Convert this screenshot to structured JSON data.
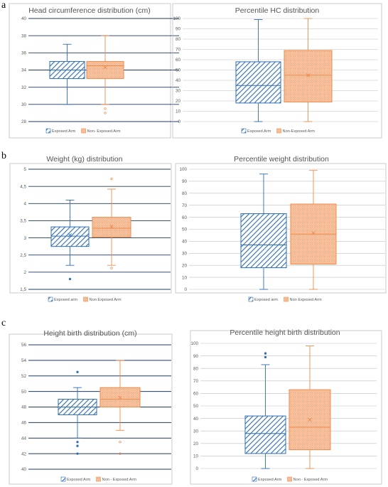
{
  "panels": [
    {
      "letter": "a"
    },
    {
      "letter": "b"
    },
    {
      "letter": "c"
    }
  ],
  "colors": {
    "exposed": "#2e6db4",
    "nonexposed": "#ef8a4a",
    "grid": "#1f3864",
    "frame": "#bfbfbf"
  },
  "chart_data": [
    {
      "type": "box",
      "title": "Head circumference distribution (cm)",
      "ylim": [
        28,
        40
      ],
      "yticks": [
        "28",
        "30",
        "32",
        "34",
        "36",
        "38",
        "40"
      ],
      "series": [
        {
          "name": "Exposed Arm",
          "min": 30,
          "q1": 33,
          "median": 34,
          "q3": 35,
          "max": 37,
          "mean": null,
          "outliers": []
        },
        {
          "name": "Non- Exposed Arm",
          "min": 30,
          "q1": 33,
          "median": 34.5,
          "q3": 35,
          "max": 38,
          "mean": 34.3,
          "outliers": [
            29,
            29.5
          ]
        }
      ]
    },
    {
      "type": "box",
      "title": "Percentile HC distribution",
      "ylim": [
        0,
        100
      ],
      "yticks": [
        "0",
        "10",
        "20",
        "30",
        "40",
        "50",
        "60",
        "70",
        "80",
        "90",
        "100"
      ],
      "series": [
        {
          "name": "Exposed Arm",
          "min": 0,
          "q1": 18,
          "median": 35,
          "q3": 58,
          "max": 99,
          "mean": null,
          "outliers": []
        },
        {
          "name": "Non-Exposed Arm",
          "min": 0,
          "q1": 19,
          "median": 45,
          "q3": 69,
          "max": 100,
          "mean": 45,
          "outliers": []
        }
      ]
    },
    {
      "type": "box",
      "title": "Weight (kg) distribution",
      "ylim": [
        1.5,
        5
      ],
      "yticks": [
        "1,5",
        "2",
        "2,5",
        "3",
        "3,5",
        "4",
        "4,5",
        "5"
      ],
      "series": [
        {
          "name": "Exposed arm",
          "min": 2.2,
          "q1": 2.75,
          "median": 3.05,
          "q3": 3.32,
          "max": 4.1,
          "mean": 3.08,
          "outliers": [
            1.8
          ]
        },
        {
          "name": "Non Exposed Arm",
          "min": 2.2,
          "q1": 3.02,
          "median": 3.28,
          "q3": 3.6,
          "max": 4.42,
          "mean": 3.33,
          "outliers": [
            2.12,
            4.72
          ]
        }
      ]
    },
    {
      "type": "box",
      "title": "Percentile weight distribution",
      "ylim": [
        0,
        100
      ],
      "yticks": [
        "0",
        "10",
        "20",
        "30",
        "40",
        "50",
        "60",
        "70",
        "80",
        "90",
        "100"
      ],
      "series": [
        {
          "name": "Exposed arm",
          "min": 0,
          "q1": 18,
          "median": 37,
          "q3": 63,
          "max": 96,
          "mean": null,
          "outliers": []
        },
        {
          "name": "Non Exposed Arm",
          "min": 0,
          "q1": 21,
          "median": 46,
          "q3": 71,
          "max": 99,
          "mean": 47,
          "outliers": []
        }
      ]
    },
    {
      "type": "box",
      "title": "Height birth distribution (cm)",
      "ylim": [
        40,
        56
      ],
      "yticks": [
        "40",
        "42",
        "44",
        "46",
        "48",
        "50",
        "52",
        "54",
        "56"
      ],
      "series": [
        {
          "name": "Exposed Arm",
          "min": 44,
          "q1": 47,
          "median": 48,
          "q3": 49,
          "max": 50.5,
          "mean": null,
          "outliers": [
            42,
            43,
            43.5,
            52.5
          ]
        },
        {
          "name": "Non - Exposed Arm",
          "min": 45,
          "q1": 48,
          "median": 49,
          "q3": 50.5,
          "max": 54,
          "mean": 49.2,
          "outliers": [
            42,
            43.5
          ]
        }
      ]
    },
    {
      "type": "box",
      "title": "Percentile height birth distribution",
      "ylim": [
        0,
        100
      ],
      "yticks": [
        "0",
        "10",
        "20",
        "30",
        "40",
        "50",
        "60",
        "70",
        "80",
        "90",
        "100"
      ],
      "series": [
        {
          "name": "Exposed Arm",
          "min": 0,
          "q1": 12,
          "median": 28,
          "q3": 42,
          "max": 83,
          "mean": null,
          "outliers": [
            89,
            92
          ]
        },
        {
          "name": "Non - Exposed Arm",
          "min": 0,
          "q1": 15,
          "median": 33,
          "q3": 63,
          "max": 98,
          "mean": 39,
          "outliers": []
        }
      ]
    }
  ]
}
